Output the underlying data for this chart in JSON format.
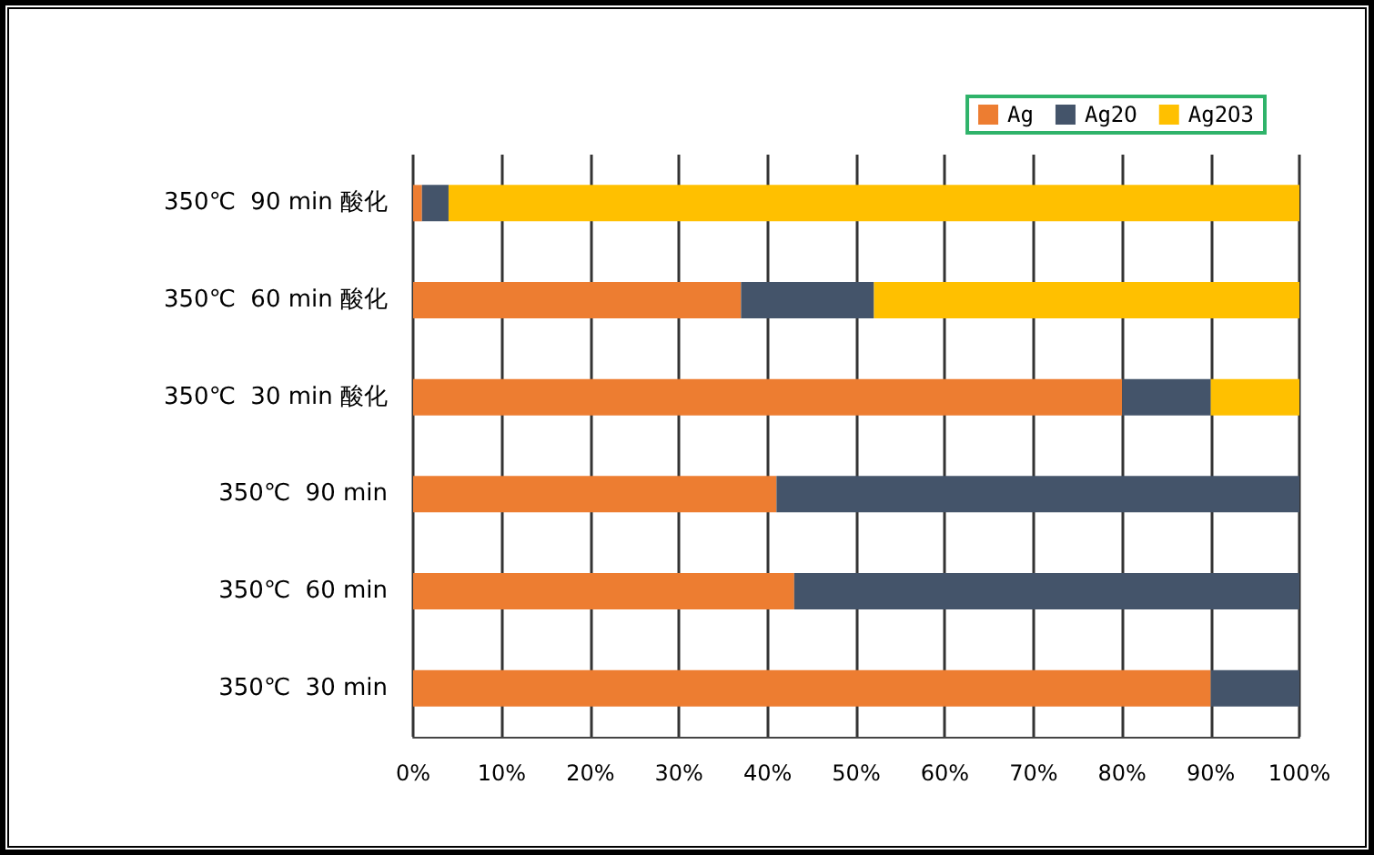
{
  "chart_data": {
    "type": "bar",
    "orientation": "horizontal",
    "stacked": true,
    "categories": [
      "350℃  90 min 酸化",
      "350℃  60 min 酸化",
      "350℃  30 min 酸化",
      "350℃  90 min",
      "350℃  60 min",
      "350℃  30 min"
    ],
    "series": [
      {
        "name": "Ag",
        "color": "#ed7d31",
        "values": [
          1,
          37,
          80,
          41,
          43,
          90
        ]
      },
      {
        "name": "Ag2O",
        "color": "#44546a",
        "values": [
          3,
          15,
          10,
          59,
          57,
          10
        ]
      },
      {
        "name": "Ag2O3",
        "color": "#ffc000",
        "values": [
          96,
          48,
          10,
          0,
          0,
          0
        ]
      }
    ],
    "xlim": [
      0,
      100
    ],
    "xticks": [
      {
        "value": 0,
        "label": "0%"
      },
      {
        "value": 10,
        "label": "10%"
      },
      {
        "value": 20,
        "label": "20%"
      },
      {
        "value": 30,
        "label": "30%"
      },
      {
        "value": 40,
        "label": "40%"
      },
      {
        "value": 50,
        "label": "50%"
      },
      {
        "value": 60,
        "label": "60%"
      },
      {
        "value": 70,
        "label": "70%"
      },
      {
        "value": 80,
        "label": "80%"
      },
      {
        "value": 90,
        "label": "90%"
      },
      {
        "value": 100,
        "label": "100%"
      }
    ],
    "grid": "x",
    "legend": "top right"
  }
}
